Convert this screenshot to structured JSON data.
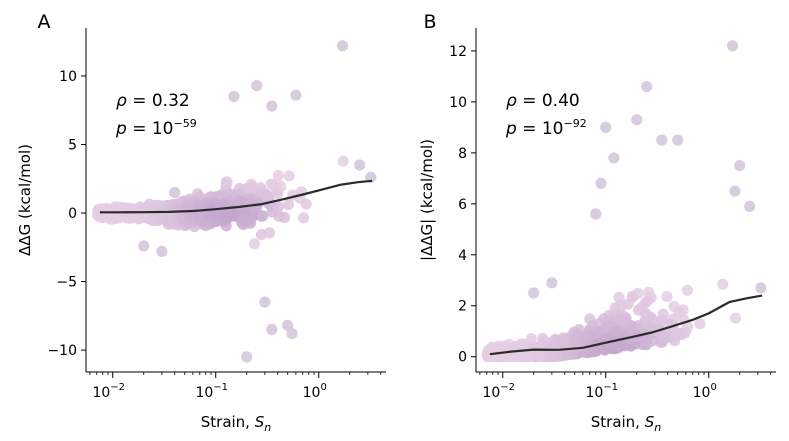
{
  "chart_data": [
    {
      "type": "scatter",
      "panel_label": "A",
      "xlabel_text": "Strain, ",
      "xlabel_sym": "S",
      "xlabel_sub": "n",
      "ylabel": "ΔΔG (kcal/mol)",
      "xscale": "log",
      "xlim": [
        0.0055,
        4.5
      ],
      "ylim": [
        -11.6,
        13.5
      ],
      "xticks": [
        {
          "value": 0.01,
          "base": "10",
          "exp": "−2"
        },
        {
          "value": 0.1,
          "base": "10",
          "exp": "−1"
        },
        {
          "value": 1,
          "base": "10",
          "exp": "0"
        }
      ],
      "yticks": [
        {
          "value": -10,
          "label": "−10"
        },
        {
          "value": -5,
          "label": "−5"
        },
        {
          "value": 0,
          "label": "0"
        },
        {
          "value": 5,
          "label": "5"
        },
        {
          "value": 10,
          "label": "10"
        }
      ],
      "annotation": {
        "rho_sym": "ρ",
        "rho_val": " = 0.32",
        "p_sym": "p",
        "p_eq": " = 10",
        "p_exp": "−59"
      },
      "trend_line": {
        "x": [
          0.0075,
          0.012,
          0.02,
          0.035,
          0.06,
          0.1,
          0.17,
          0.28,
          0.45,
          0.7,
          1.0,
          1.6,
          2.4,
          3.3
        ],
        "y": [
          0.05,
          0.05,
          0.06,
          0.08,
          0.15,
          0.28,
          0.45,
          0.65,
          1.0,
          1.35,
          1.65,
          2.05,
          2.25,
          2.35
        ]
      },
      "outliers": [
        {
          "x": 1.7,
          "y": 12.2
        },
        {
          "x": 0.25,
          "y": 9.3
        },
        {
          "x": 0.15,
          "y": 8.5
        },
        {
          "x": 0.35,
          "y": 7.8
        },
        {
          "x": 0.6,
          "y": 8.6
        },
        {
          "x": 0.2,
          "y": -10.5
        },
        {
          "x": 0.5,
          "y": -8.2
        },
        {
          "x": 0.55,
          "y": -8.8
        },
        {
          "x": 0.35,
          "y": -8.5
        },
        {
          "x": 0.3,
          "y": -6.5
        },
        {
          "x": 0.02,
          "y": -2.4
        },
        {
          "x": 0.03,
          "y": -2.8
        },
        {
          "x": 3.2,
          "y": 2.6
        },
        {
          "x": 2.5,
          "y": 3.5
        },
        {
          "x": 0.04,
          "y": 1.5
        }
      ]
    },
    {
      "type": "scatter",
      "panel_label": "B",
      "xlabel_text": "Strain, ",
      "xlabel_sym": "S",
      "xlabel_sub": "n",
      "ylabel": "|ΔΔG| (kcal/mol)",
      "xscale": "log",
      "xlim": [
        0.0055,
        4.5
      ],
      "ylim": [
        -0.6,
        12.9
      ],
      "xticks": [
        {
          "value": 0.01,
          "base": "10",
          "exp": "−2"
        },
        {
          "value": 0.1,
          "base": "10",
          "exp": "−1"
        },
        {
          "value": 1,
          "base": "10",
          "exp": "0"
        }
      ],
      "yticks": [
        {
          "value": 0,
          "label": "0"
        },
        {
          "value": 2,
          "label": "2"
        },
        {
          "value": 4,
          "label": "4"
        },
        {
          "value": 6,
          "label": "6"
        },
        {
          "value": 8,
          "label": "8"
        },
        {
          "value": 10,
          "label": "10"
        },
        {
          "value": 12,
          "label": "12"
        }
      ],
      "annotation": {
        "rho_sym": "ρ",
        "rho_val": " = 0.40",
        "p_sym": "p",
        "p_eq": " = 10",
        "p_exp": "−92"
      },
      "trend_line": {
        "x": [
          0.0075,
          0.012,
          0.02,
          0.035,
          0.06,
          0.1,
          0.17,
          0.28,
          0.45,
          0.7,
          1.0,
          1.6,
          2.4,
          3.3
        ],
        "y": [
          0.1,
          0.2,
          0.28,
          0.27,
          0.35,
          0.55,
          0.75,
          0.95,
          1.2,
          1.45,
          1.7,
          2.15,
          2.3,
          2.4
        ]
      },
      "outliers": [
        {
          "x": 1.7,
          "y": 12.2
        },
        {
          "x": 0.25,
          "y": 10.6
        },
        {
          "x": 0.2,
          "y": 9.3
        },
        {
          "x": 0.1,
          "y": 9.0
        },
        {
          "x": 0.5,
          "y": 8.5
        },
        {
          "x": 0.35,
          "y": 8.5
        },
        {
          "x": 0.12,
          "y": 7.8
        },
        {
          "x": 0.09,
          "y": 6.8
        },
        {
          "x": 0.08,
          "y": 5.6
        },
        {
          "x": 2.0,
          "y": 7.5
        },
        {
          "x": 1.8,
          "y": 6.5
        },
        {
          "x": 2.5,
          "y": 5.9
        },
        {
          "x": 0.03,
          "y": 2.9
        },
        {
          "x": 0.02,
          "y": 2.5
        },
        {
          "x": 3.2,
          "y": 2.7
        }
      ]
    }
  ]
}
